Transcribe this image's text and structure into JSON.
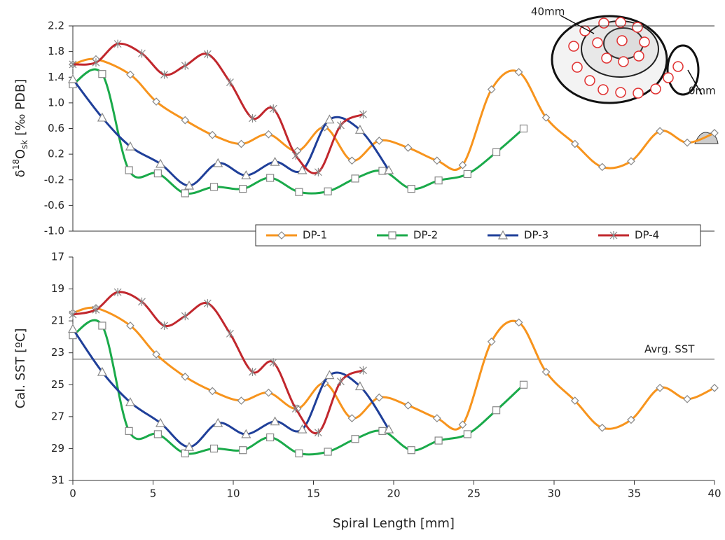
{
  "chart_data": [
    {
      "type": "line",
      "y_label": {
        "base": "δ",
        "sup": "18",
        "main": "O",
        "sub": "sk",
        "unit": "[‰ PDB]"
      },
      "xlim": [
        0,
        40
      ],
      "ylim": [
        -1.0,
        2.2
      ],
      "yticks": [
        2.2,
        1.8,
        1.4,
        {
          "value": 1.0,
          "label": "1.0"
        },
        0.6,
        0.2,
        -0.2,
        -0.6,
        {
          "value": -1.0,
          "label": "-1.0"
        }
      ],
      "top_border": true,
      "legend": "bottom-right",
      "annotations": [
        "40mm",
        "0mm"
      ],
      "series": [
        {
          "name": "DP-1",
          "color": "#f7941d",
          "marker": "diamond",
          "x": [
            0,
            1.44,
            3.58,
            5.2,
            7.0,
            8.7,
            10.5,
            12.2,
            14.0,
            15.7,
            17.4,
            19.1,
            20.9,
            22.7,
            24.3,
            26.1,
            27.8,
            29.5,
            31.3,
            33.0,
            34.8,
            36.6,
            38.3,
            40
          ],
          "values": [
            1.6,
            1.68,
            1.44,
            1.02,
            0.73,
            0.5,
            0.36,
            0.51,
            0.25,
            0.62,
            0.1,
            0.41,
            0.3,
            0.1,
            0.03,
            1.21,
            1.48,
            0.77,
            0.36,
            0.0,
            0.09,
            0.56,
            0.38,
            0.53
          ]
        },
        {
          "name": "DP-2",
          "color": "#1aaa4a",
          "marker": "square",
          "x": [
            0,
            1.83,
            3.5,
            5.3,
            7.0,
            8.8,
            10.6,
            12.3,
            14.1,
            15.9,
            17.6,
            19.3,
            21.1,
            22.8,
            24.6,
            26.4,
            28.1
          ],
          "values": [
            1.29,
            1.45,
            -0.05,
            -0.1,
            -0.41,
            -0.31,
            -0.34,
            -0.17,
            -0.39,
            -0.38,
            -0.18,
            -0.06,
            -0.34,
            -0.21,
            -0.11,
            0.23,
            0.6
          ]
        },
        {
          "name": "DP-3",
          "color": "#1f3f99",
          "marker": "triangle",
          "x": [
            0,
            1.83,
            3.58,
            5.46,
            7.25,
            9.05,
            10.8,
            12.6,
            14.3,
            16.0,
            17.9,
            19.7
          ],
          "values": [
            1.37,
            0.77,
            0.32,
            0.05,
            -0.29,
            0.06,
            -0.13,
            0.08,
            -0.05,
            0.74,
            0.58,
            -0.05
          ]
        },
        {
          "name": "DP-4",
          "color": "#c1272d",
          "marker": "star",
          "x": [
            0,
            1.44,
            2.8,
            4.3,
            5.7,
            7.0,
            8.4,
            9.8,
            11.2,
            12.5,
            13.9,
            15.3,
            16.7,
            18.1
          ],
          "values": [
            1.6,
            1.63,
            1.92,
            1.77,
            1.44,
            1.58,
            1.76,
            1.32,
            0.76,
            0.91,
            0.18,
            -0.08,
            0.65,
            0.82
          ]
        }
      ]
    },
    {
      "type": "line",
      "y_label": "Cal. SST [ºC]",
      "x_label": "Spiral Length [mm]",
      "xlim": [
        0,
        40
      ],
      "xticks": [
        0,
        5,
        10,
        15,
        20,
        25,
        30,
        35,
        40
      ],
      "ylim": [
        17,
        31
      ],
      "y_inverted": true,
      "yticks": [
        17,
        19,
        21,
        23,
        25,
        27,
        29,
        31
      ],
      "hline": {
        "value": 23.4,
        "label": "Avrg. SST"
      },
      "series": [
        {
          "color": "#f7941d",
          "marker": "diamond",
          "x": [
            0,
            1.44,
            3.58,
            5.2,
            7.0,
            8.7,
            10.5,
            12.2,
            14.0,
            15.7,
            17.4,
            19.1,
            20.9,
            22.7,
            24.3,
            26.1,
            27.8,
            29.5,
            31.3,
            33.0,
            34.8,
            36.6,
            38.3,
            40
          ],
          "values": [
            20.5,
            20.2,
            21.3,
            23.1,
            24.5,
            25.4,
            26.0,
            25.5,
            26.5,
            24.9,
            27.1,
            25.8,
            26.3,
            27.1,
            27.5,
            22.3,
            21.1,
            24.2,
            26.0,
            27.7,
            27.2,
            25.2,
            25.9,
            25.2
          ]
        },
        {
          "color": "#1aaa4a",
          "marker": "square",
          "x": [
            0,
            1.83,
            3.5,
            5.3,
            7.0,
            8.8,
            10.6,
            12.3,
            14.1,
            15.9,
            17.6,
            19.3,
            21.1,
            22.8,
            24.6,
            26.4,
            28.1
          ],
          "values": [
            21.9,
            21.3,
            27.9,
            28.1,
            29.3,
            29.0,
            29.1,
            28.3,
            29.3,
            29.2,
            28.4,
            27.9,
            29.1,
            28.5,
            28.1,
            26.6,
            25.0
          ]
        },
        {
          "color": "#1f3f99",
          "marker": "triangle",
          "x": [
            0,
            1.83,
            3.58,
            5.46,
            7.25,
            9.05,
            10.8,
            12.6,
            14.3,
            16.0,
            17.9,
            19.7
          ],
          "values": [
            21.5,
            24.2,
            26.1,
            27.4,
            28.9,
            27.4,
            28.1,
            27.3,
            27.8,
            24.4,
            25.1,
            27.8
          ]
        },
        {
          "color": "#c1272d",
          "marker": "star",
          "x": [
            0,
            1.44,
            2.8,
            4.3,
            5.7,
            7.0,
            8.4,
            9.8,
            11.2,
            12.5,
            13.9,
            15.3,
            16.7,
            18.1
          ],
          "values": [
            20.6,
            20.3,
            19.2,
            19.8,
            21.3,
            20.7,
            19.9,
            21.8,
            24.2,
            23.6,
            26.5,
            28.0,
            24.8,
            24.1
          ]
        }
      ]
    }
  ]
}
